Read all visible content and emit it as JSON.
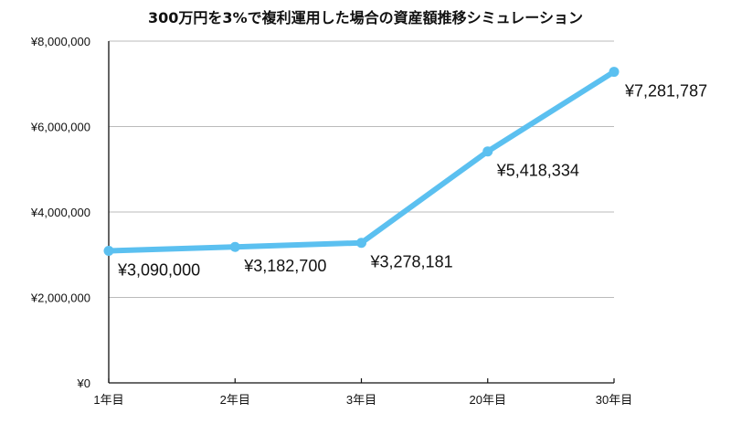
{
  "chart_data": {
    "type": "line",
    "title": "300万円を3%で複利運用した場合の資産額推移シミュレーション",
    "categories": [
      "1年目",
      "2年目",
      "3年目",
      "20年目",
      "30年目"
    ],
    "series": [
      {
        "values": [
          3090000,
          3182700,
          3278181,
          5418334,
          7281787
        ],
        "labels": [
          "¥3,090,000",
          "¥3,182,700",
          "¥3,278,181",
          "¥5,418,334",
          "¥7,281,787"
        ],
        "color": "#5bc0f0"
      }
    ],
    "yticks": [
      0,
      2000000,
      4000000,
      6000000,
      8000000
    ],
    "ytick_labels": [
      "¥0",
      "¥2,000,000",
      "¥4,000,000",
      "¥6,000,000",
      "¥8,000,000"
    ],
    "ylim": [
      0,
      8000000
    ],
    "xlabel": "",
    "ylabel": "",
    "grid": true,
    "gridline_color": "#bbbbbb",
    "axis_color": "#111111"
  }
}
